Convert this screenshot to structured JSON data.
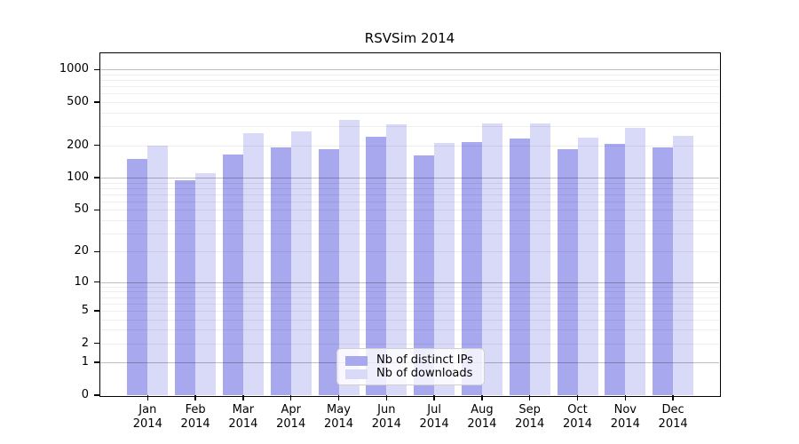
{
  "chart_data": {
    "type": "bar",
    "title": "RSVSim 2014",
    "x_categories": [
      {
        "month": "Jan",
        "year": "2014"
      },
      {
        "month": "Feb",
        "year": "2014"
      },
      {
        "month": "Mar",
        "year": "2014"
      },
      {
        "month": "Apr",
        "year": "2014"
      },
      {
        "month": "May",
        "year": "2014"
      },
      {
        "month": "Jun",
        "year": "2014"
      },
      {
        "month": "Jul",
        "year": "2014"
      },
      {
        "month": "Aug",
        "year": "2014"
      },
      {
        "month": "Sep",
        "year": "2014"
      },
      {
        "month": "Oct",
        "year": "2014"
      },
      {
        "month": "Nov",
        "year": "2014"
      },
      {
        "month": "Dec",
        "year": "2014"
      }
    ],
    "series": [
      {
        "name": "Nb of distinct IPs",
        "color": "#a8a8ee",
        "values": [
          150,
          95,
          165,
          190,
          185,
          240,
          160,
          215,
          230,
          185,
          205,
          190
        ]
      },
      {
        "name": "Nb of downloads",
        "color": "#d9d9f8",
        "values": [
          200,
          110,
          260,
          270,
          345,
          310,
          210,
          320,
          320,
          235,
          290,
          245
        ]
      }
    ],
    "y_axis": {
      "scale": "log1p",
      "ticks": [
        1000,
        500,
        200,
        100,
        50,
        20,
        10,
        5,
        2,
        1,
        0
      ],
      "range": [
        0,
        1400
      ],
      "grid_major": [
        1,
        10,
        100,
        1000
      ],
      "grid_minor": [
        2,
        3,
        4,
        5,
        6,
        7,
        8,
        9,
        20,
        30,
        40,
        50,
        60,
        70,
        80,
        90,
        200,
        300,
        400,
        500,
        600,
        700,
        800,
        900
      ]
    },
    "legend": {
      "position": "lower-center"
    }
  }
}
